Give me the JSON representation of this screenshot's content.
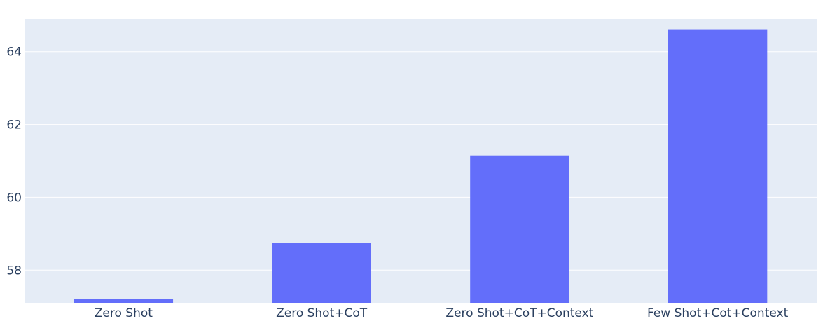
{
  "chart_data": {
    "type": "bar",
    "categories": [
      "Zero Shot",
      "Zero Shot+CoT",
      "Zero Shot+CoT+Context",
      "Few Shot+Cot+Context"
    ],
    "values": [
      57.2,
      58.75,
      61.15,
      64.6
    ],
    "title": "",
    "xlabel": "",
    "ylabel": "",
    "ylim": [
      57.1,
      64.9
    ],
    "yticks": [
      58,
      60,
      62,
      64
    ],
    "grid": true,
    "legend": "none",
    "colors": {
      "bar": "#636efa",
      "plot_background": "#e5ecf6",
      "gridline": "#ffffff",
      "tick_text": "#2a3f5f"
    }
  }
}
